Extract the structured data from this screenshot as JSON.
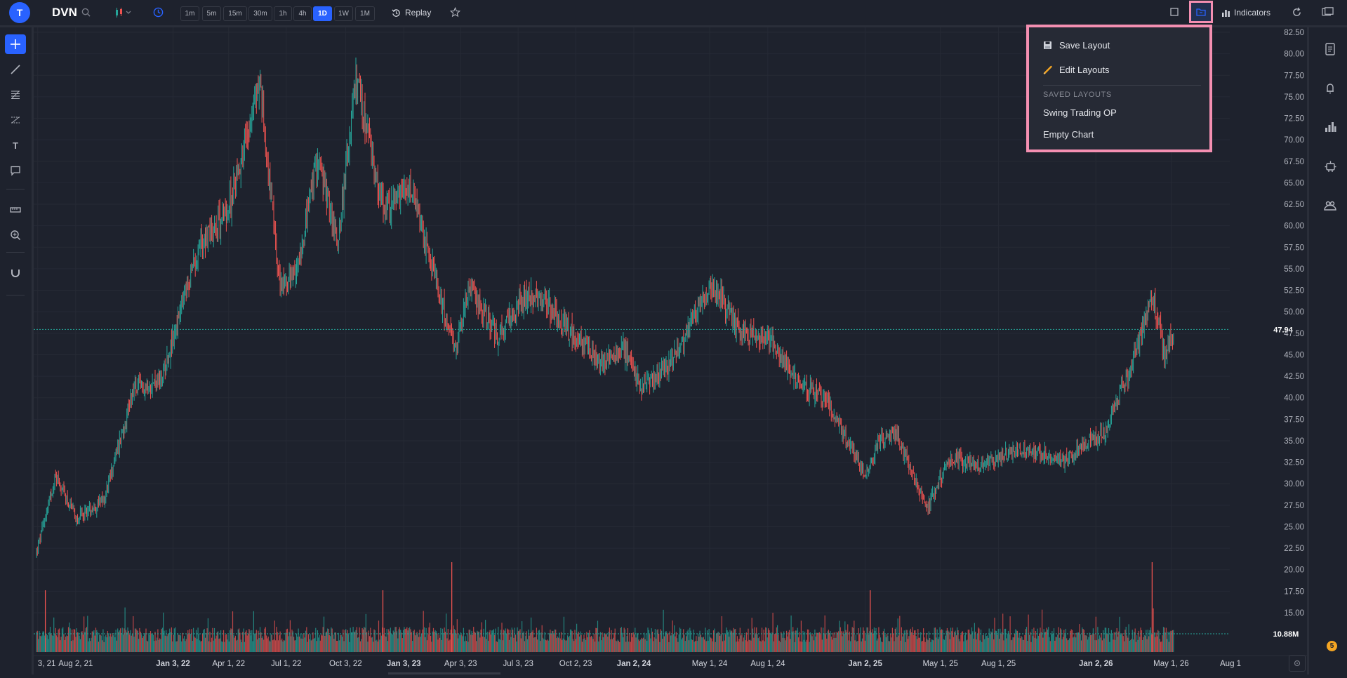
{
  "header": {
    "avatar_letter": "T",
    "symbol": "DVN",
    "timeframes": [
      "1m",
      "5m",
      "15m",
      "30m",
      "1h",
      "4h",
      "1D",
      "1W",
      "1M"
    ],
    "active_timeframe": "1D",
    "replay_label": "Replay",
    "indicators_label": "Indicators"
  },
  "dropdown": {
    "save_layout": "Save Layout",
    "edit_layouts": "Edit Layouts",
    "saved_heading": "SAVED LAYOUTS",
    "layouts": [
      "Swing Trading OP",
      "Empty Chart"
    ]
  },
  "notification_count": "5",
  "colors": {
    "up": "#26a69a",
    "down": "#ef5350",
    "accent": "#2962ff",
    "highlight": "#f48fb1",
    "background": "#1e222d"
  },
  "chart_data": {
    "type": "candlestick",
    "symbol": "DVN",
    "interval": "1D",
    "price_ticks": [
      "82.50",
      "80.00",
      "77.50",
      "75.00",
      "72.50",
      "70.00",
      "67.50",
      "65.00",
      "62.50",
      "60.00",
      "57.50",
      "55.00",
      "52.50",
      "50.00",
      "47.50",
      "45.00",
      "42.50",
      "40.00",
      "37.50",
      "35.00",
      "32.50",
      "30.00",
      "27.50",
      "25.00",
      "22.50",
      "20.00",
      "17.50",
      "15.00"
    ],
    "time_ticks": [
      "3, 21",
      "Aug 2, 21",
      "Jan 3, 22",
      "Apr 1, 22",
      "Jul 1, 22",
      "Oct 3, 22",
      "Jan 3, 23",
      "Apr 3, 23",
      "Jul 3, 23",
      "Oct 2, 23",
      "Jan 2, 24",
      "May 1, 24",
      "Aug 1, 24",
      "Jan 2, 25",
      "May 1, 25",
      "Aug 1, 25",
      "Jan 2, 26",
      "May 1, 26",
      "Aug 1"
    ],
    "bold_time_ticks": [
      "Jan 3, 22",
      "Jan 3, 23",
      "Jan 2, 24",
      "Jan 2, 25",
      "Jan 2, 26"
    ],
    "last_price": "47.94",
    "last_volume": "10.88M",
    "ylim": [
      14,
      83
    ],
    "close_path": [
      {
        "date": "2021-06-01",
        "close": 22
      },
      {
        "date": "2021-07-01",
        "close": 31
      },
      {
        "date": "2021-08-02",
        "close": 26
      },
      {
        "date": "2021-09-15",
        "close": 28
      },
      {
        "date": "2021-11-01",
        "close": 41
      },
      {
        "date": "2021-12-15",
        "close": 42
      },
      {
        "date": "2022-01-03",
        "close": 47
      },
      {
        "date": "2022-02-15",
        "close": 58
      },
      {
        "date": "2022-04-01",
        "close": 62
      },
      {
        "date": "2022-05-20",
        "close": 77
      },
      {
        "date": "2022-06-20",
        "close": 53
      },
      {
        "date": "2022-07-15",
        "close": 54
      },
      {
        "date": "2022-08-20",
        "close": 68
      },
      {
        "date": "2022-09-20",
        "close": 58
      },
      {
        "date": "2022-10-20",
        "close": 77
      },
      {
        "date": "2022-12-01",
        "close": 62
      },
      {
        "date": "2023-01-15",
        "close": 64
      },
      {
        "date": "2023-03-01",
        "close": 52
      },
      {
        "date": "2023-03-25",
        "close": 45
      },
      {
        "date": "2023-04-15",
        "close": 53
      },
      {
        "date": "2023-06-01",
        "close": 47
      },
      {
        "date": "2023-07-15",
        "close": 52
      },
      {
        "date": "2023-08-15",
        "close": 51
      },
      {
        "date": "2023-10-01",
        "close": 47
      },
      {
        "date": "2023-11-15",
        "close": 44
      },
      {
        "date": "2023-12-15",
        "close": 46
      },
      {
        "date": "2024-01-15",
        "close": 41
      },
      {
        "date": "2024-03-01",
        "close": 44
      },
      {
        "date": "2024-04-15",
        "close": 51
      },
      {
        "date": "2024-05-10",
        "close": 53
      },
      {
        "date": "2024-06-15",
        "close": 48
      },
      {
        "date": "2024-08-01",
        "close": 47
      },
      {
        "date": "2024-09-15",
        "close": 42
      },
      {
        "date": "2024-11-01",
        "close": 40
      },
      {
        "date": "2025-01-01",
        "close": 31
      },
      {
        "date": "2025-01-25",
        "close": 35
      },
      {
        "date": "2025-02-20",
        "close": 36
      },
      {
        "date": "2025-04-10",
        "close": 27
      },
      {
        "date": "2025-05-15",
        "close": 33
      },
      {
        "date": "2025-07-01",
        "close": 32
      },
      {
        "date": "2025-09-01",
        "close": 34
      },
      {
        "date": "2025-11-15",
        "close": 33
      },
      {
        "date": "2026-01-15",
        "close": 36
      },
      {
        "date": "2026-03-01",
        "close": 44
      },
      {
        "date": "2026-04-01",
        "close": 52
      },
      {
        "date": "2026-04-20",
        "close": 45
      },
      {
        "date": "2026-05-05",
        "close": 47.94
      }
    ],
    "volume_spikes": [
      {
        "date": "2021-06-15",
        "volume": "high"
      },
      {
        "date": "2022-12-01",
        "volume": "high"
      },
      {
        "date": "2023-03-20",
        "volume": "very high"
      },
      {
        "date": "2025-01-10",
        "volume": "high"
      },
      {
        "date": "2026-04-01",
        "volume": "very high"
      }
    ]
  }
}
